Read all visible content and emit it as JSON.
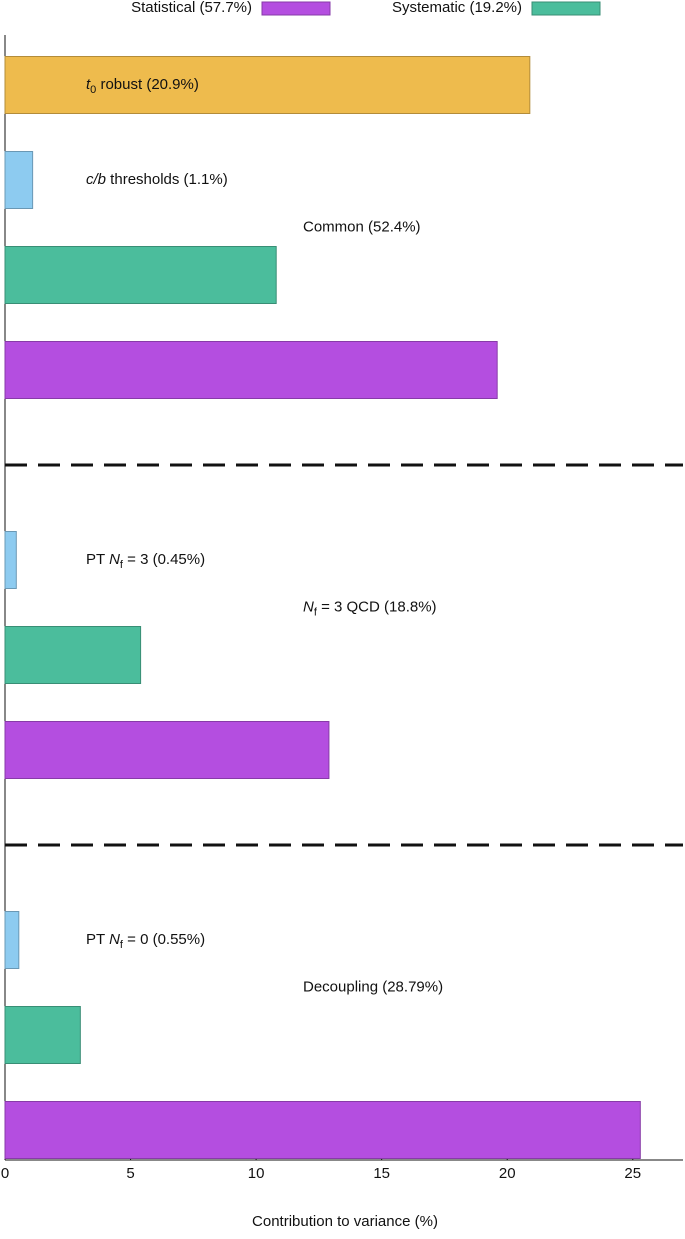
{
  "chart_data": {
    "type": "bar",
    "orientation": "horizontal",
    "xlabel": "Contribution to variance (%)",
    "xlim": [
      0,
      27
    ],
    "xticks": [
      0,
      5,
      10,
      15,
      20,
      25
    ],
    "legend": [
      {
        "name": "Statistical (57.7%)",
        "color": "#b44ee0"
      },
      {
        "name": "Systematic (19.2%)",
        "color": "#4bbd9c"
      }
    ],
    "groups": [
      {
        "label": [
          "Common (52.4%)"
        ],
        "label_style": [
          "normal"
        ],
        "bars": [
          {
            "value": 20.9,
            "color": "#eebb4d",
            "label": [
              "t",
              "0",
              " robust (20.9%)"
            ],
            "label_style": [
              "italic",
              "sub",
              "normal"
            ]
          },
          {
            "value": 1.1,
            "color": "#8dcbf0",
            "label": [
              "c/b",
              " thresholds (1.1%)"
            ],
            "label_style": [
              "italic",
              "normal"
            ]
          },
          {
            "value": 10.8,
            "color": "#4bbd9c"
          },
          {
            "value": 19.6,
            "color": "#b44ee0"
          }
        ]
      },
      {
        "label": [
          "N",
          "f",
          " = 3 QCD (18.8%)"
        ],
        "label_style": [
          "italic",
          "sub",
          "normal"
        ],
        "bars": [
          {
            "value": 0.45,
            "color": "#8dcbf0",
            "label": [
              "PT ",
              "N",
              "f",
              " = 3 (0.45%)"
            ],
            "label_style": [
              "normal",
              "italic",
              "sub",
              "normal"
            ]
          },
          {
            "value": 5.4,
            "color": "#4bbd9c"
          },
          {
            "value": 12.9,
            "color": "#b44ee0"
          }
        ]
      },
      {
        "label": [
          "Decoupling (28.79%)"
        ],
        "label_style": [
          "normal"
        ],
        "bars": [
          {
            "value": 0.55,
            "color": "#8dcbf0",
            "label": [
              "PT ",
              "N",
              "f",
              " = 0 (0.55%)"
            ],
            "label_style": [
              "normal",
              "italic",
              "sub",
              "normal"
            ]
          },
          {
            "value": 3.0,
            "color": "#4bbd9c"
          },
          {
            "value": 25.3,
            "color": "#b44ee0"
          }
        ]
      }
    ]
  }
}
